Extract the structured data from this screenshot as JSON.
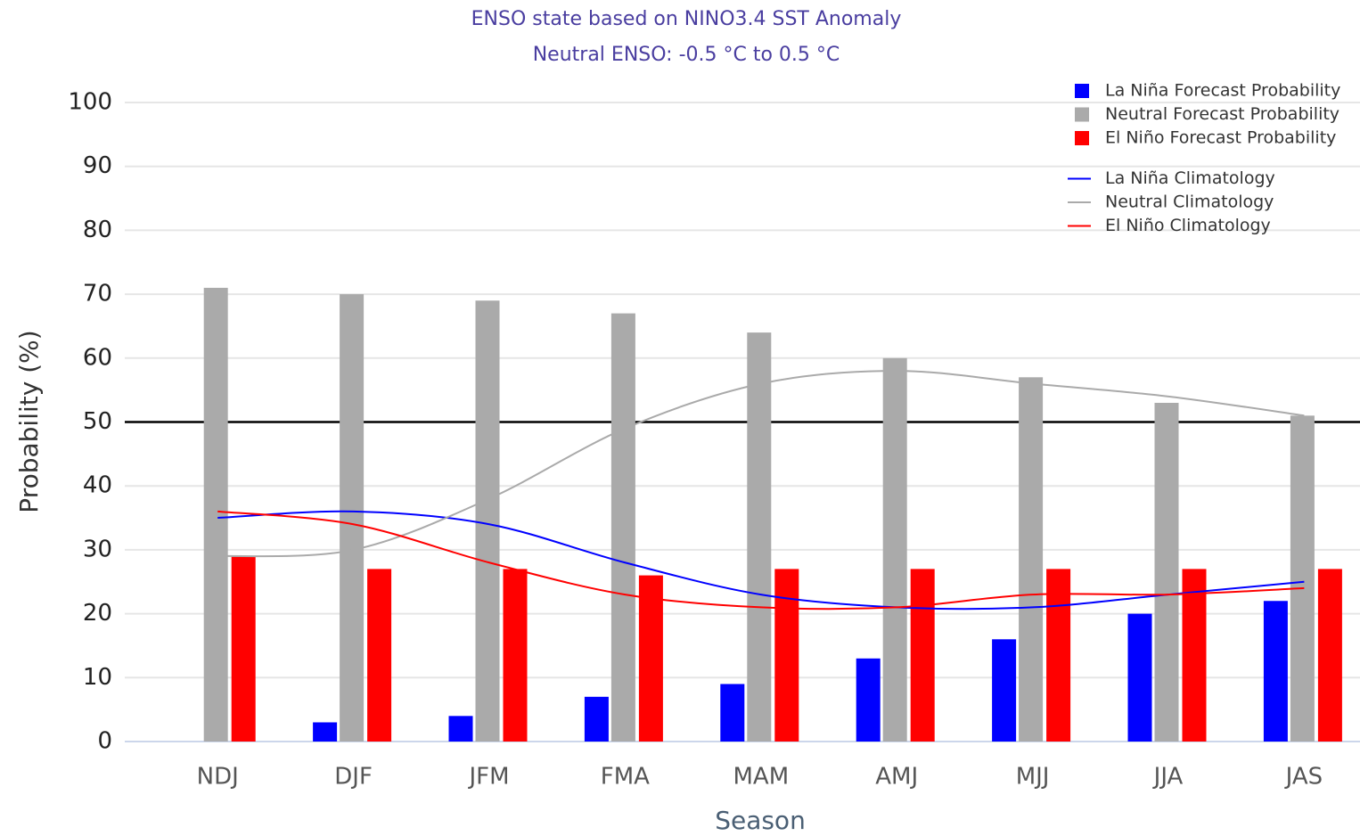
{
  "chart_data": {
    "type": "bar",
    "title": "ENSO state based on NINO3.4 SST Anomaly",
    "subtitle": "Neutral ENSO: -0.5 °C to 0.5 °C",
    "x_label": "Season",
    "y_label": "Probability (%)",
    "categories": [
      "NDJ",
      "DJF",
      "JFM",
      "FMA",
      "MAM",
      "AMJ",
      "MJJ",
      "JJA",
      "JAS"
    ],
    "series": [
      {
        "name": "La Niña Forecast Probability",
        "type": "bar",
        "color": "#0000ff",
        "values": [
          0,
          3,
          4,
          7,
          9,
          13,
          16,
          20,
          22
        ]
      },
      {
        "name": "Neutral Forecast Probability",
        "type": "bar",
        "color": "#aaaaaa",
        "values": [
          71,
          70,
          69,
          67,
          64,
          60,
          57,
          53,
          51
        ]
      },
      {
        "name": "El Niño Forecast Probability",
        "type": "bar",
        "color": "#ff0000",
        "values": [
          29,
          27,
          27,
          26,
          27,
          27,
          27,
          27,
          27
        ]
      },
      {
        "name": "La Niña Climatology",
        "type": "line",
        "color": "#0000ff",
        "values": [
          35,
          36,
          34,
          28,
          23,
          21,
          21,
          23,
          25
        ]
      },
      {
        "name": "Neutral Climatology",
        "type": "line",
        "color": "#aaaaaa",
        "values": [
          29,
          30,
          38,
          49,
          56,
          58,
          56,
          54,
          51
        ]
      },
      {
        "name": "El Niño Climatology",
        "type": "line",
        "color": "#ff0000",
        "values": [
          36,
          34,
          28,
          23,
          21,
          21,
          23,
          23,
          24
        ]
      }
    ],
    "reference_line": 50,
    "ylim": [
      0,
      100
    ],
    "yticks": [
      0,
      10,
      20,
      30,
      40,
      50,
      60,
      70,
      80,
      90,
      100
    ],
    "grid": true,
    "legend": "upper right"
  }
}
